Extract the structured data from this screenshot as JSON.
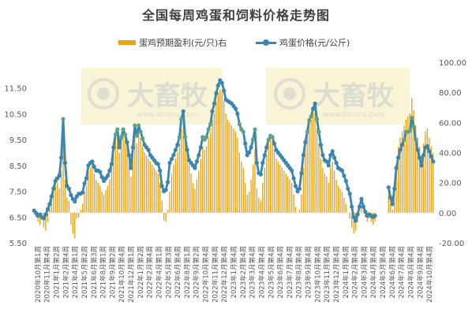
{
  "chart_data": {
    "type": "bar+line",
    "title": "全国每周鸡蛋和饲料价格走势图",
    "left_axis": {
      "ylim": [
        5.5,
        12.5
      ],
      "ticks": [
        "5.50",
        "6.50",
        "7.50",
        "8.50",
        "9.50",
        "10.50",
        "11.50"
      ],
      "series": "鸡蛋价格(元/公斤)"
    },
    "right_axis": {
      "ylim": [
        -20,
        100
      ],
      "ticks": [
        "-20.00",
        "0.00",
        "20.00",
        "40.00",
        "60.00",
        "80.00",
        "100.00"
      ],
      "series": "蛋鸡预期盈利(元/只)右"
    },
    "legend": {
      "placement": "top",
      "entries": [
        "蛋鸡预期盈利(元/只)右",
        "鸡蛋价格(元/公斤)"
      ]
    },
    "x_labels": [
      "2020年10月第1周",
      "2020年11月第4周",
      "2021年1月第2周",
      "2021年2月第4周",
      "2021年4月第1周",
      "2021年5月第2周",
      "2021年6月第3周",
      "2021年8月第1周",
      "2021年9月第2周",
      "2021年10月第4周",
      "2021年12月第1周",
      "2022年1月第2周",
      "2022年2月第4周",
      "2022年4月第1周",
      "2022年5月第3周",
      "2022年6月第4周",
      "2022年8月第1周",
      "2022年9月第2周",
      "2022年10月第4周",
      "2022年11月第4周",
      "2022年12月第4周",
      "2023年1月第4周",
      "2023年2月第4周",
      "2023年3月第4周",
      "2023年4月第4周",
      "2023年5月第4周",
      "2023年6月第4周",
      "2023年7月第4周",
      "2023年8月第4周",
      "2023年9月第4周",
      "2023年10月第4周",
      "2023年11月第4周",
      "2023年12月第4周",
      "2024年1月第4周",
      "2024年2月第4周",
      "2024年3月第4周",
      "2024年4月第4周",
      "2024年5月第4周",
      "2024年6月第4周",
      "2024年7月第4周",
      "2024年8月第4周",
      "2024年9月第4周",
      "2024年10月第4周"
    ],
    "price_series": {
      "name": "鸡蛋价格(元/公斤)",
      "color": "#3A86B0",
      "highlight_color": "#5FA383",
      "values": [
        6.75,
        6.65,
        6.55,
        6.6,
        6.5,
        6.45,
        6.6,
        6.8,
        7.0,
        7.3,
        7.6,
        7.9,
        8.0,
        8.1,
        8.8,
        10.3,
        8.6,
        7.7,
        7.6,
        7.35,
        7.2,
        7.1,
        7.3,
        7.4,
        7.4,
        7.45,
        7.8,
        8.0,
        8.5,
        8.6,
        8.65,
        8.45,
        8.3,
        8.3,
        8.25,
        8.05,
        7.9,
        8.0,
        8.1,
        8.3,
        8.55,
        9.2,
        9.7,
        9.9,
        9.2,
        9.6,
        9.9,
        9.7,
        9.4,
        8.9,
        8.4,
        9.2,
        10.05,
        9.65,
        10.05,
        9.8,
        9.55,
        9.3,
        9.2,
        9.1,
        8.9,
        8.8,
        8.7,
        8.6,
        8.55,
        8.3,
        7.7,
        7.5,
        7.55,
        7.85,
        8.6,
        8.75,
        8.9,
        9.1,
        9.3,
        9.6,
        10.3,
        10.6,
        9.6,
        9.1,
        8.7,
        8.6,
        8.5,
        8.4,
        8.65,
        8.9,
        9.2,
        9.6,
        9.5,
        9.6,
        9.9,
        10.1,
        10.6,
        10.9,
        11.3,
        11.6,
        11.8,
        11.7,
        11.4,
        11.05,
        11.0,
        10.95,
        10.9,
        10.8,
        10.7,
        10.5,
        10.1,
        9.9,
        9.8,
        9.35,
        8.9,
        9.0,
        9.2,
        9.5,
        9.9,
        8.6,
        8.2,
        8.15,
        8.6,
        8.9,
        9.2,
        9.5,
        9.65,
        9.6,
        9.35,
        9.1,
        9.0,
        8.9,
        8.8,
        8.7,
        8.6,
        8.5,
        8.4,
        8.3,
        8.0,
        7.7,
        7.5,
        7.6,
        8.2,
        8.9,
        9.4,
        9.8,
        10.25,
        10.4,
        10.7,
        10.9,
        10.3,
        9.8,
        9.3,
        8.9,
        8.7,
        8.65,
        8.5,
        8.9,
        9.05,
        8.8,
        8.6,
        8.4,
        8.35,
        8.3,
        8.1,
        7.9,
        7.6,
        7.4,
        6.9,
        6.5,
        6.35,
        6.6,
        6.9,
        7.2,
        6.9,
        6.7,
        6.55,
        6.6,
        6.55,
        6.5,
        6.55,
        null,
        null,
        null,
        null,
        null,
        null,
        7.65,
        7.25,
        7.0,
        7.6,
        8.4,
        8.8,
        9.1,
        9.3,
        9.5,
        9.8,
        9.8,
        9.85,
        10.35,
        10.0,
        9.5,
        9.1,
        8.8,
        8.5,
        8.9,
        9.2,
        9.25,
        9.05,
        8.85,
        8.65
      ]
    },
    "profit_series": {
      "name": "蛋鸡预期盈利(元/只)右",
      "color": "#E8A317",
      "values": [
        2,
        -3,
        -6,
        -8,
        -5,
        -10,
        -12,
        -6,
        5,
        12,
        18,
        24,
        20,
        16,
        28,
        55,
        22,
        10,
        8,
        -8,
        -14,
        -17,
        -4,
        -3,
        2,
        6,
        14,
        18,
        28,
        30,
        32,
        26,
        22,
        20,
        18,
        14,
        12,
        15,
        18,
        22,
        30,
        44,
        52,
        56,
        40,
        48,
        56,
        50,
        44,
        34,
        24,
        38,
        58,
        46,
        56,
        50,
        44,
        40,
        38,
        36,
        34,
        32,
        30,
        28,
        26,
        20,
        8,
        -5,
        -6,
        2,
        14,
        26,
        32,
        36,
        40,
        46,
        56,
        60,
        48,
        40,
        32,
        26,
        20,
        16,
        22,
        28,
        36,
        44,
        42,
        44,
        50,
        54,
        62,
        66,
        74,
        80,
        82,
        80,
        74,
        66,
        62,
        60,
        58,
        56,
        54,
        50,
        40,
        34,
        30,
        20,
        12,
        14,
        22,
        32,
        42,
        16,
        10,
        8,
        20,
        30,
        38,
        46,
        50,
        48,
        42,
        36,
        34,
        32,
        30,
        28,
        26,
        24,
        22,
        20,
        12,
        4,
        0,
        2,
        12,
        30,
        44,
        52,
        58,
        62,
        66,
        68,
        56,
        46,
        36,
        30,
        26,
        24,
        20,
        30,
        34,
        28,
        22,
        18,
        16,
        14,
        10,
        6,
        0,
        -4,
        -10,
        -14,
        -12,
        -6,
        0,
        4,
        0,
        -3,
        -6,
        -4,
        -6,
        -8,
        -6,
        null,
        null,
        null,
        null,
        null,
        null,
        16,
        8,
        2,
        16,
        32,
        44,
        50,
        54,
        58,
        62,
        64,
        66,
        76,
        68,
        58,
        50,
        44,
        38,
        46,
        54,
        56,
        50,
        44,
        40
      ]
    },
    "watermark": {
      "brand": "大畜牧",
      "url": "www.dxumu.com"
    }
  }
}
